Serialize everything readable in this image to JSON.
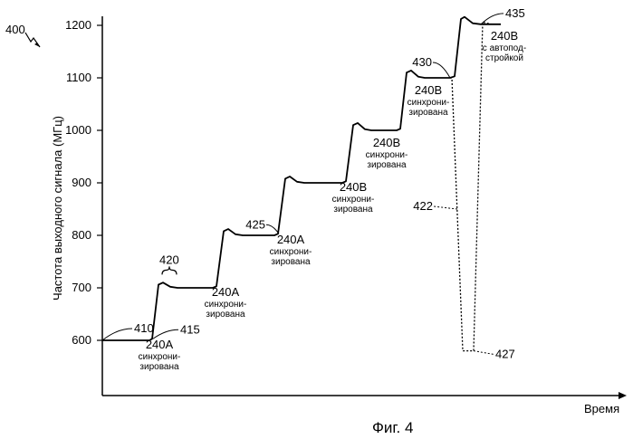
{
  "figure_label": "400",
  "caption": "Фиг. 4",
  "chart_data": {
    "type": "line",
    "ylabel": "Частота выходного сигнала (МГц)",
    "xlabel": "Время",
    "ylim": [
      600,
      1200
    ],
    "yticks": [
      600,
      700,
      800,
      900,
      1000,
      1100,
      1200
    ],
    "x_ticks": "none",
    "grid": false,
    "series": [
      {
        "style": "solid",
        "points": [
          [
            0,
            600
          ],
          [
            52,
            600
          ],
          [
            55,
            603
          ],
          [
            62,
            706
          ],
          [
            67,
            710
          ],
          [
            75,
            702
          ],
          [
            83,
            700
          ],
          [
            122,
            700
          ],
          [
            126,
            703
          ],
          [
            134,
            808
          ],
          [
            139,
            812
          ],
          [
            147,
            802
          ],
          [
            155,
            800
          ],
          [
            190,
            800
          ],
          [
            194,
            803
          ],
          [
            202,
            908
          ],
          [
            207,
            912
          ],
          [
            215,
            902
          ],
          [
            223,
            900
          ],
          [
            265,
            900
          ],
          [
            269,
            903
          ],
          [
            277,
            1010
          ],
          [
            282,
            1014
          ],
          [
            290,
            1002
          ],
          [
            297,
            1000
          ],
          [
            325,
            1000
          ],
          [
            329,
            1003
          ],
          [
            336,
            1110
          ],
          [
            341,
            1114
          ],
          [
            349,
            1102
          ],
          [
            356,
            1100
          ],
          [
            384,
            1100
          ],
          [
            389,
            1103
          ],
          [
            396,
            1212
          ],
          [
            400,
            1216
          ],
          [
            409,
            1204
          ],
          [
            418,
            1202
          ],
          [
            440,
            1202
          ]
        ]
      },
      {
        "style": "dotted",
        "points": [
          [
            384,
            1100
          ],
          [
            386,
            1100
          ],
          [
            398,
            580
          ],
          [
            410,
            580
          ],
          [
            420,
            1206
          ],
          [
            430,
            1202
          ]
        ]
      }
    ],
    "annotations": [
      {
        "ref": "410",
        "x": 0,
        "y": 600
      },
      {
        "ref": "415",
        "x": 56,
        "y": 603
      },
      {
        "ref": "420",
        "x": 64,
        "y": 708
      },
      {
        "ref": "425",
        "x": 195,
        "y": 803
      },
      {
        "ref": "430",
        "x": 384,
        "y": 1100
      },
      {
        "ref": "435",
        "x": 418,
        "y": 1202
      },
      {
        "ref": "422",
        "x": 392,
        "y": 850
      },
      {
        "ref": "427",
        "x": 410,
        "y": 580
      }
    ],
    "segment_labels": [
      {
        "id": "240A",
        "lines": [
          "синхрони-",
          "зирована"
        ]
      },
      {
        "id": "240A",
        "lines": [
          "синхрони-",
          "зирована"
        ]
      },
      {
        "id": "240A",
        "lines": [
          "синхрони-",
          "зирована"
        ]
      },
      {
        "id": "240B",
        "lines": [
          "синхрони-",
          "зирована"
        ]
      },
      {
        "id": "240B",
        "lines": [
          "синхрони-",
          "зирована"
        ]
      },
      {
        "id": "240B",
        "lines": [
          "синхрони-",
          "зирована"
        ]
      },
      {
        "id": "240B",
        "lines": [
          "с автопод-",
          "стройкой"
        ]
      }
    ]
  }
}
